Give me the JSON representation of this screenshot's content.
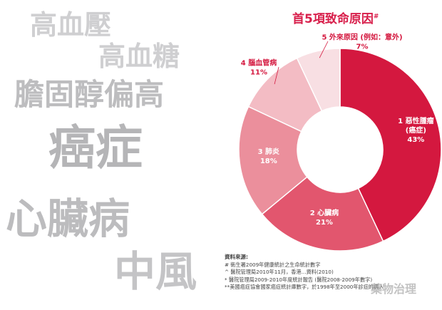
{
  "decor_words": [
    "高血壓",
    "高血糖",
    "膽固醇偏高",
    "癌症",
    "心臟病",
    "中風"
  ],
  "chart_data": {
    "type": "pie",
    "title": "首5項致命原因",
    "title_mark": "#",
    "hole": true,
    "slices": [
      {
        "rank": "1",
        "name": "惡性腫瘤",
        "sub": "(癌症)",
        "value": 43,
        "label": "43%",
        "color": "#d4183f",
        "text_color": "#ffffff"
      },
      {
        "rank": "2",
        "name": "心臟病",
        "value": 21,
        "label": "21%",
        "color": "#e2566e",
        "text_color": "#ffffff"
      },
      {
        "rank": "3",
        "name": "肺炎",
        "value": 18,
        "label": "18%",
        "color": "#eb8f9c",
        "text_color": "#ffffff"
      },
      {
        "rank": "4",
        "name": "腦血管病",
        "value": 11,
        "label": "11%",
        "color": "#f3bcc4",
        "text_color": "#d4183f"
      },
      {
        "rank": "5",
        "name": "外來原因 (例如：意外)",
        "value": 7,
        "label": "7%",
        "color": "#f8dfe3",
        "text_color": "#d4183f"
      }
    ]
  },
  "sources": {
    "heading": "資料來源:",
    "lines": [
      "#   衞生署2009年健康統計之生命統計數字",
      "^   醫院管理局2010年11月，香港...資料(2010)",
      "*   醫院管理局2009-2010年度統計報告 (醫院2008-2009年數字)",
      "**美國癌症協會國家癌症統計庫數字，於1998年至2000年診症的病人"
    ]
  },
  "watermark": "藥物治理"
}
